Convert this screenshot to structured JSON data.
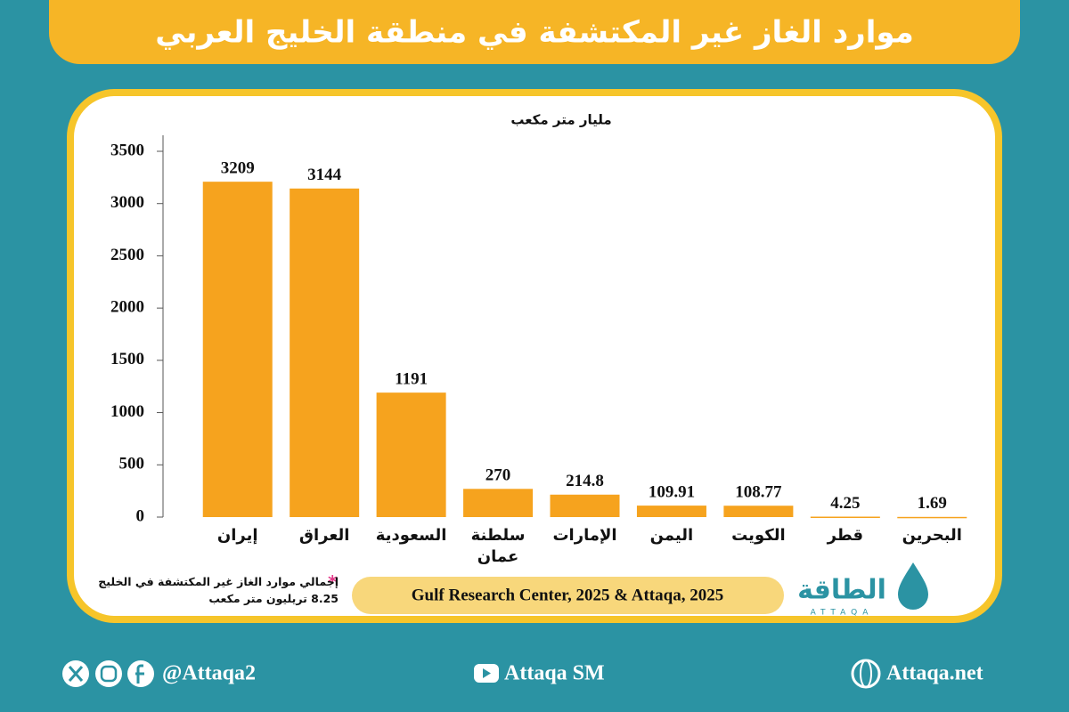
{
  "chart_data": {
    "type": "bar",
    "title": "موارد الغاز غير المكتشفة في منطقة الخليج العربي",
    "y_axis_label": "مليار متر مكعب",
    "categories": [
      "إيران",
      "العراق",
      "السعودية",
      "سلطنة عمان",
      "الإمارات",
      "اليمن",
      "الكويت",
      "قطر",
      "البحرين"
    ],
    "values": [
      3209,
      3144,
      1191,
      270,
      214.8,
      109.91,
      108.77,
      4.25,
      1.69
    ],
    "color": "#f6a31e",
    "ylim": [
      0,
      3500
    ],
    "yticks": [
      0,
      500,
      1000,
      1500,
      2000,
      2500,
      3000,
      3500
    ],
    "grid": false,
    "note_marker": "*",
    "note": "إجمالي موارد الغاز غير المكتشفة في الخليج 8.25 تريليون متر مكعب",
    "source": "Gulf Research Center, 2025 & Attaqa, 2025"
  },
  "logo": {
    "arabic": "الطاقة",
    "latin": "ATTAQA"
  },
  "footer": {
    "social": "@Attaqa2",
    "youtube": "Attaqa SM",
    "website": "Attaqa.net"
  }
}
